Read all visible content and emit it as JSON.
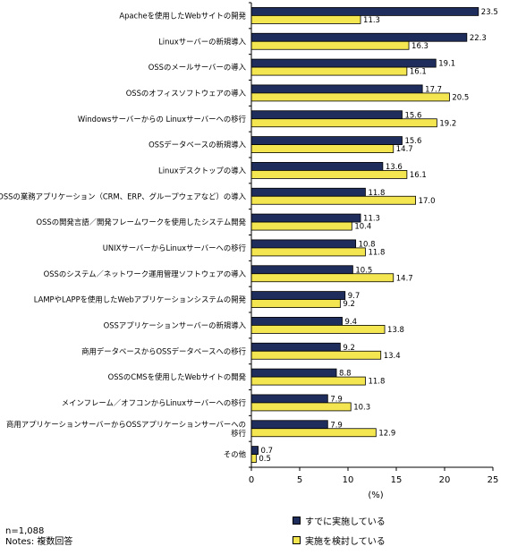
{
  "chart_data": {
    "type": "bar",
    "orientation": "horizontal",
    "categories": [
      "Apacheを使用したWebサイトの開発",
      "Linuxサーバーの新規導入",
      "OSSのメールサーバーの導入",
      "OSSのオフィスソフトウェアの導入",
      "Windowsサーバーからの Linuxサーバーへの移行",
      "OSSデータベースの新規導入",
      "Linuxデスクトップの導入",
      "OSSの業務アプリケーション（CRM、ERP、グループウェアなど）の導入",
      "OSSの開発言語／開発フレームワークを使用したシステム開発",
      "UNIXサーバーからLinuxサーバーへの移行",
      "OSSのシステム／ネットワーク運用管理ソフトウェアの導入",
      "LAMPやLAPPを使用したWebアプリケーションシステムの開発",
      "OSSアプリケーションサーバーの新規導入",
      "商用データベースからOSSデータベースへの移行",
      "OSSのCMSを使用したWebサイトの開発",
      "メインフレーム／オフコンからLinuxサーバーへの移行",
      [
        "商用アプリケーションサーバーからOSSアプリケーションサーバーへの",
        "移行"
      ],
      "その他"
    ],
    "series": [
      {
        "name": "すでに実施している",
        "color": "#1f2d5c",
        "values": [
          23.5,
          22.3,
          19.1,
          17.7,
          15.6,
          15.6,
          13.6,
          11.8,
          11.3,
          10.8,
          10.5,
          9.7,
          9.4,
          9.2,
          8.8,
          7.9,
          7.9,
          0.7
        ]
      },
      {
        "name": "実施を検討している",
        "color": "#f4e650",
        "values": [
          11.3,
          16.3,
          16.1,
          20.5,
          19.2,
          14.7,
          16.1,
          17.0,
          10.4,
          11.8,
          14.7,
          9.2,
          13.8,
          13.4,
          11.8,
          10.3,
          12.9,
          0.5
        ]
      }
    ],
    "xlim": [
      0,
      25
    ],
    "xticks": [
      "0",
      "5",
      "10",
      "15",
      "20",
      "25"
    ],
    "xlabel": "(%)",
    "legend": "bottom-right"
  },
  "notes": {
    "n": "n=1,088",
    "notes": "Notes: 複数回答"
  }
}
